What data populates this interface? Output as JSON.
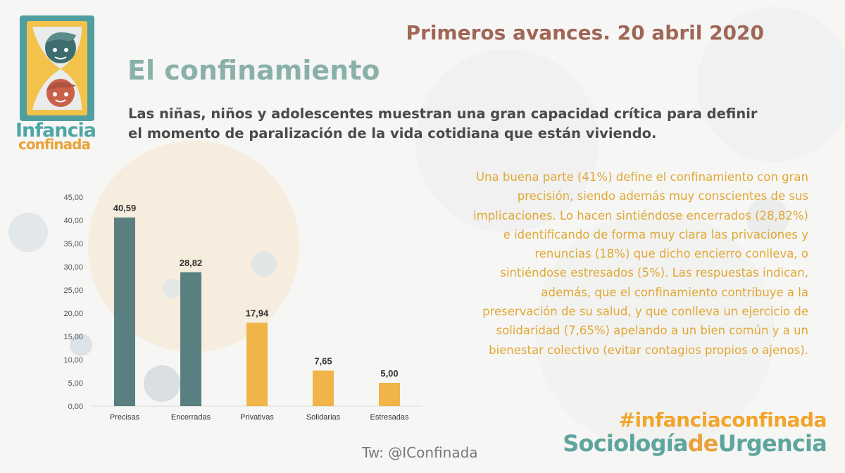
{
  "header": {
    "date_title": "Primeros avances. 20 abril 2020",
    "page_title": "El confinamiento",
    "lead": "Las niñas, niños y adolescentes muestran una gran capacidad crítica para definir el momento de paralización de la vida cotidiana que están viviendo."
  },
  "logo": {
    "word1": "Infancia",
    "word2": "confinada"
  },
  "body_text": "Una buena parte (41%) define el confinamiento con gran precisión, siendo además muy conscientes de sus implicaciones. Lo hacen sintiéndose encerrados (28,82%) e identificando de forma muy clara las privaciones y renuncias (18%) que dicho encierro conlleva, o sintiéndose estresados (5%). Las respuestas indican, además, que el confinamiento contribuye a la preservación de su salud, y que conlleva un ejercicio de solidaridad (7,65%) apelando a un bien común y a un bienestar colectivo (evitar contagios propios o ajenos).",
  "footer": {
    "hashtag": "#infanciaconfinada",
    "brand_part1": "Sociología",
    "brand_part2": "de",
    "brand_part3": "Urgencia",
    "twitter": "Tw: @IConfinada"
  },
  "colors": {
    "teal_bar": "#5a7f80",
    "amber_bar": "#f0b448",
    "axis_text": "#555555",
    "grid": "#d9d9d9"
  },
  "chart_data": {
    "type": "bar",
    "categories": [
      "Precisas",
      "Encerradas",
      "Privativas",
      "Solidarias",
      "Estresadas"
    ],
    "values": [
      40.59,
      28.82,
      17.94,
      7.65,
      5.0
    ],
    "value_labels": [
      "40,59",
      "28,82",
      "17,94",
      "7,65",
      "5,00"
    ],
    "bar_colors": [
      "#5a7f80",
      "#5a7f80",
      "#f0b448",
      "#f0b448",
      "#f0b448"
    ],
    "ylim": [
      0,
      45
    ],
    "yticks": [
      "0,00",
      "5,00",
      "10,00",
      "15,00",
      "20,00",
      "25,00",
      "30,00",
      "35,00",
      "40,00",
      "45,00"
    ],
    "grid": false,
    "legend": "none",
    "title": "",
    "xlabel": "",
    "ylabel": ""
  }
}
